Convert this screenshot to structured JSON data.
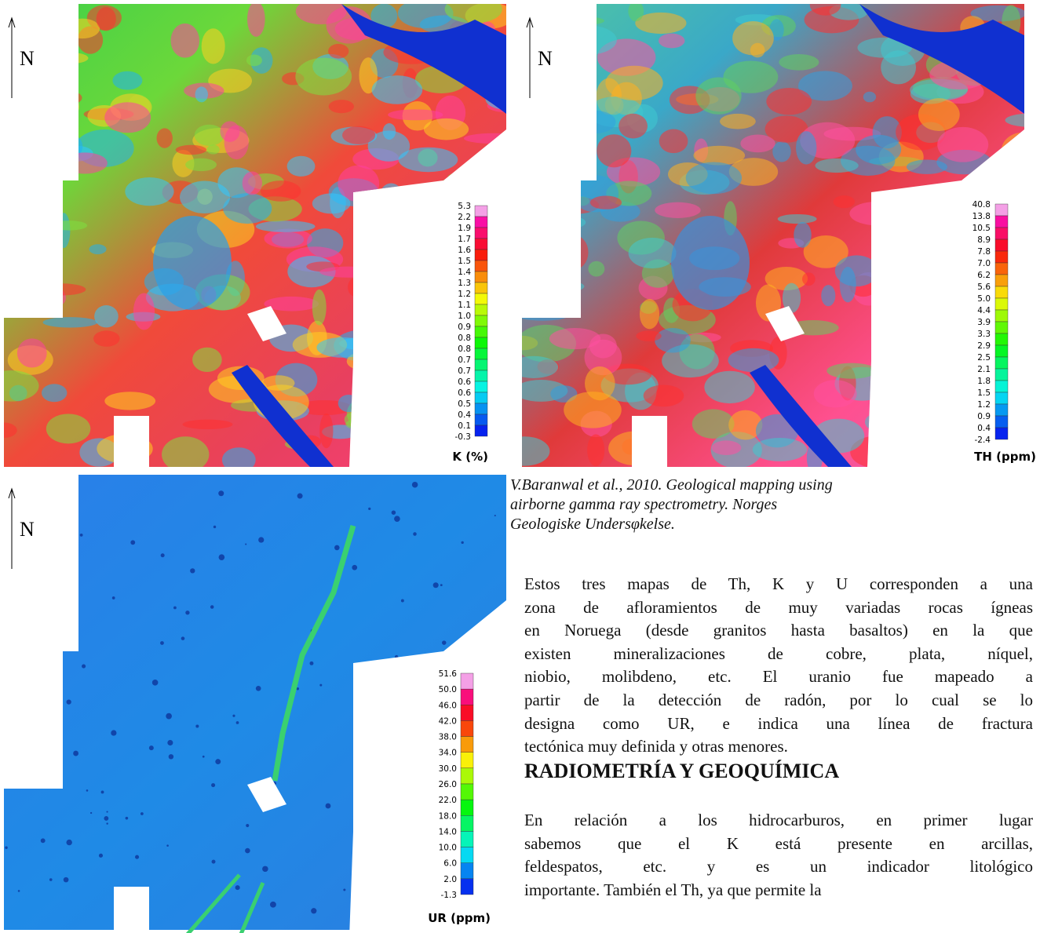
{
  "maps": [
    {
      "north": "N",
      "scale": {
        "title": "K (%)",
        "labels": [
          "5.3",
          "2.2",
          "1.9",
          "1.7",
          "1.6",
          "1.5",
          "1.4",
          "1.3",
          "1.2",
          "1.1",
          "1.0",
          "0.9",
          "0.8",
          "0.8",
          "0.7",
          "0.7",
          "0.6",
          "0.6",
          "0.5",
          "0.4",
          "0.1",
          "-0.3"
        ]
      }
    },
    {
      "north": "N",
      "scale": {
        "title": "TH (ppm)",
        "labels": [
          "40.8",
          "13.8",
          "10.5",
          "8.9",
          "7.8",
          "7.0",
          "6.2",
          "5.6",
          "5.0",
          "4.4",
          "3.9",
          "3.3",
          "2.9",
          "2.5",
          "2.1",
          "1.8",
          "1.5",
          "1.2",
          "0.9",
          "0.4",
          "-2.4"
        ]
      }
    },
    {
      "north": "N",
      "scale": {
        "title": "UR (ppm)",
        "labels": [
          "51.6",
          "50.0",
          "46.0",
          "42.0",
          "38.0",
          "34.0",
          "30.0",
          "26.0",
          "22.0",
          "18.0",
          "14.0",
          "10.0",
          "6.0",
          "2.0",
          "-1.3"
        ]
      }
    }
  ],
  "caption": [
    "V.Baranwal et al., 2010. Geological mapping using",
    "airborne gamma ray spectrometry. Norges",
    "Geologiske Undersφkelse."
  ],
  "paragraph_1": [
    "Estos tres mapas de Th, K y U corresponden a una",
    "zona de afloramientos de muy variadas rocas ígneas",
    "en Noruega (desde granitos hasta basaltos) en la que",
    "existen mineralizaciones de cobre, plata, níquel,",
    "niobio, molibdeno, etc. El uranio fue mapeado a",
    "partir de la detección de radón, por lo cual se lo",
    "designa como UR, e indica una línea de fractura",
    "tectónica muy definida y otras menores."
  ],
  "heading": "RADIOMETRÍA Y GEOQUÍMICA",
  "paragraph_2": [
    "En relación a los hidrocarburos, en primer lugar",
    "sabemos que el K está presente en arcillas,",
    "feldespatos, etc. y es un indicador litológico",
    "importante. También el Th, ya que permite la"
  ]
}
